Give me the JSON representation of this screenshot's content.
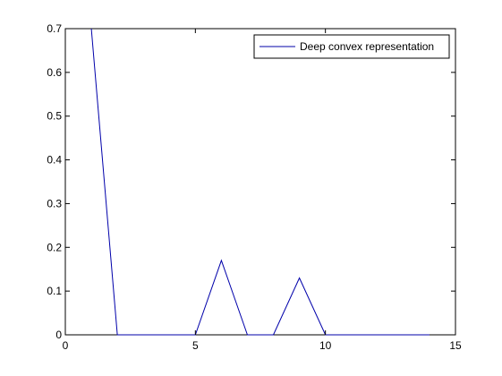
{
  "chart_data": {
    "type": "line",
    "title": "",
    "xlabel": "",
    "ylabel": "",
    "xlim": [
      0,
      15
    ],
    "ylim": [
      0,
      0.7
    ],
    "xticks": [
      0,
      5,
      10,
      15
    ],
    "xtick_labels": [
      "0",
      "5",
      "10",
      "15"
    ],
    "yticks": [
      0,
      0.1,
      0.2,
      0.3,
      0.4,
      0.5,
      0.6,
      0.7
    ],
    "ytick_labels": [
      "0",
      "0.1",
      "0.2",
      "0.3",
      "0.4",
      "0.5",
      "0.6",
      "0.7"
    ],
    "grid": false,
    "legend_position": "top-right",
    "series": [
      {
        "name": "Deep convex representation",
        "color": "#0000aa",
        "x": [
          1,
          2,
          3,
          4,
          5,
          6,
          7,
          8,
          9,
          10,
          11,
          12,
          13,
          14
        ],
        "y": [
          0.7,
          0.0,
          0.0,
          0.0,
          0.0,
          0.17,
          0.0,
          0.0,
          0.13,
          0.0,
          0.0,
          0.0,
          0.0,
          0.0
        ]
      }
    ]
  }
}
